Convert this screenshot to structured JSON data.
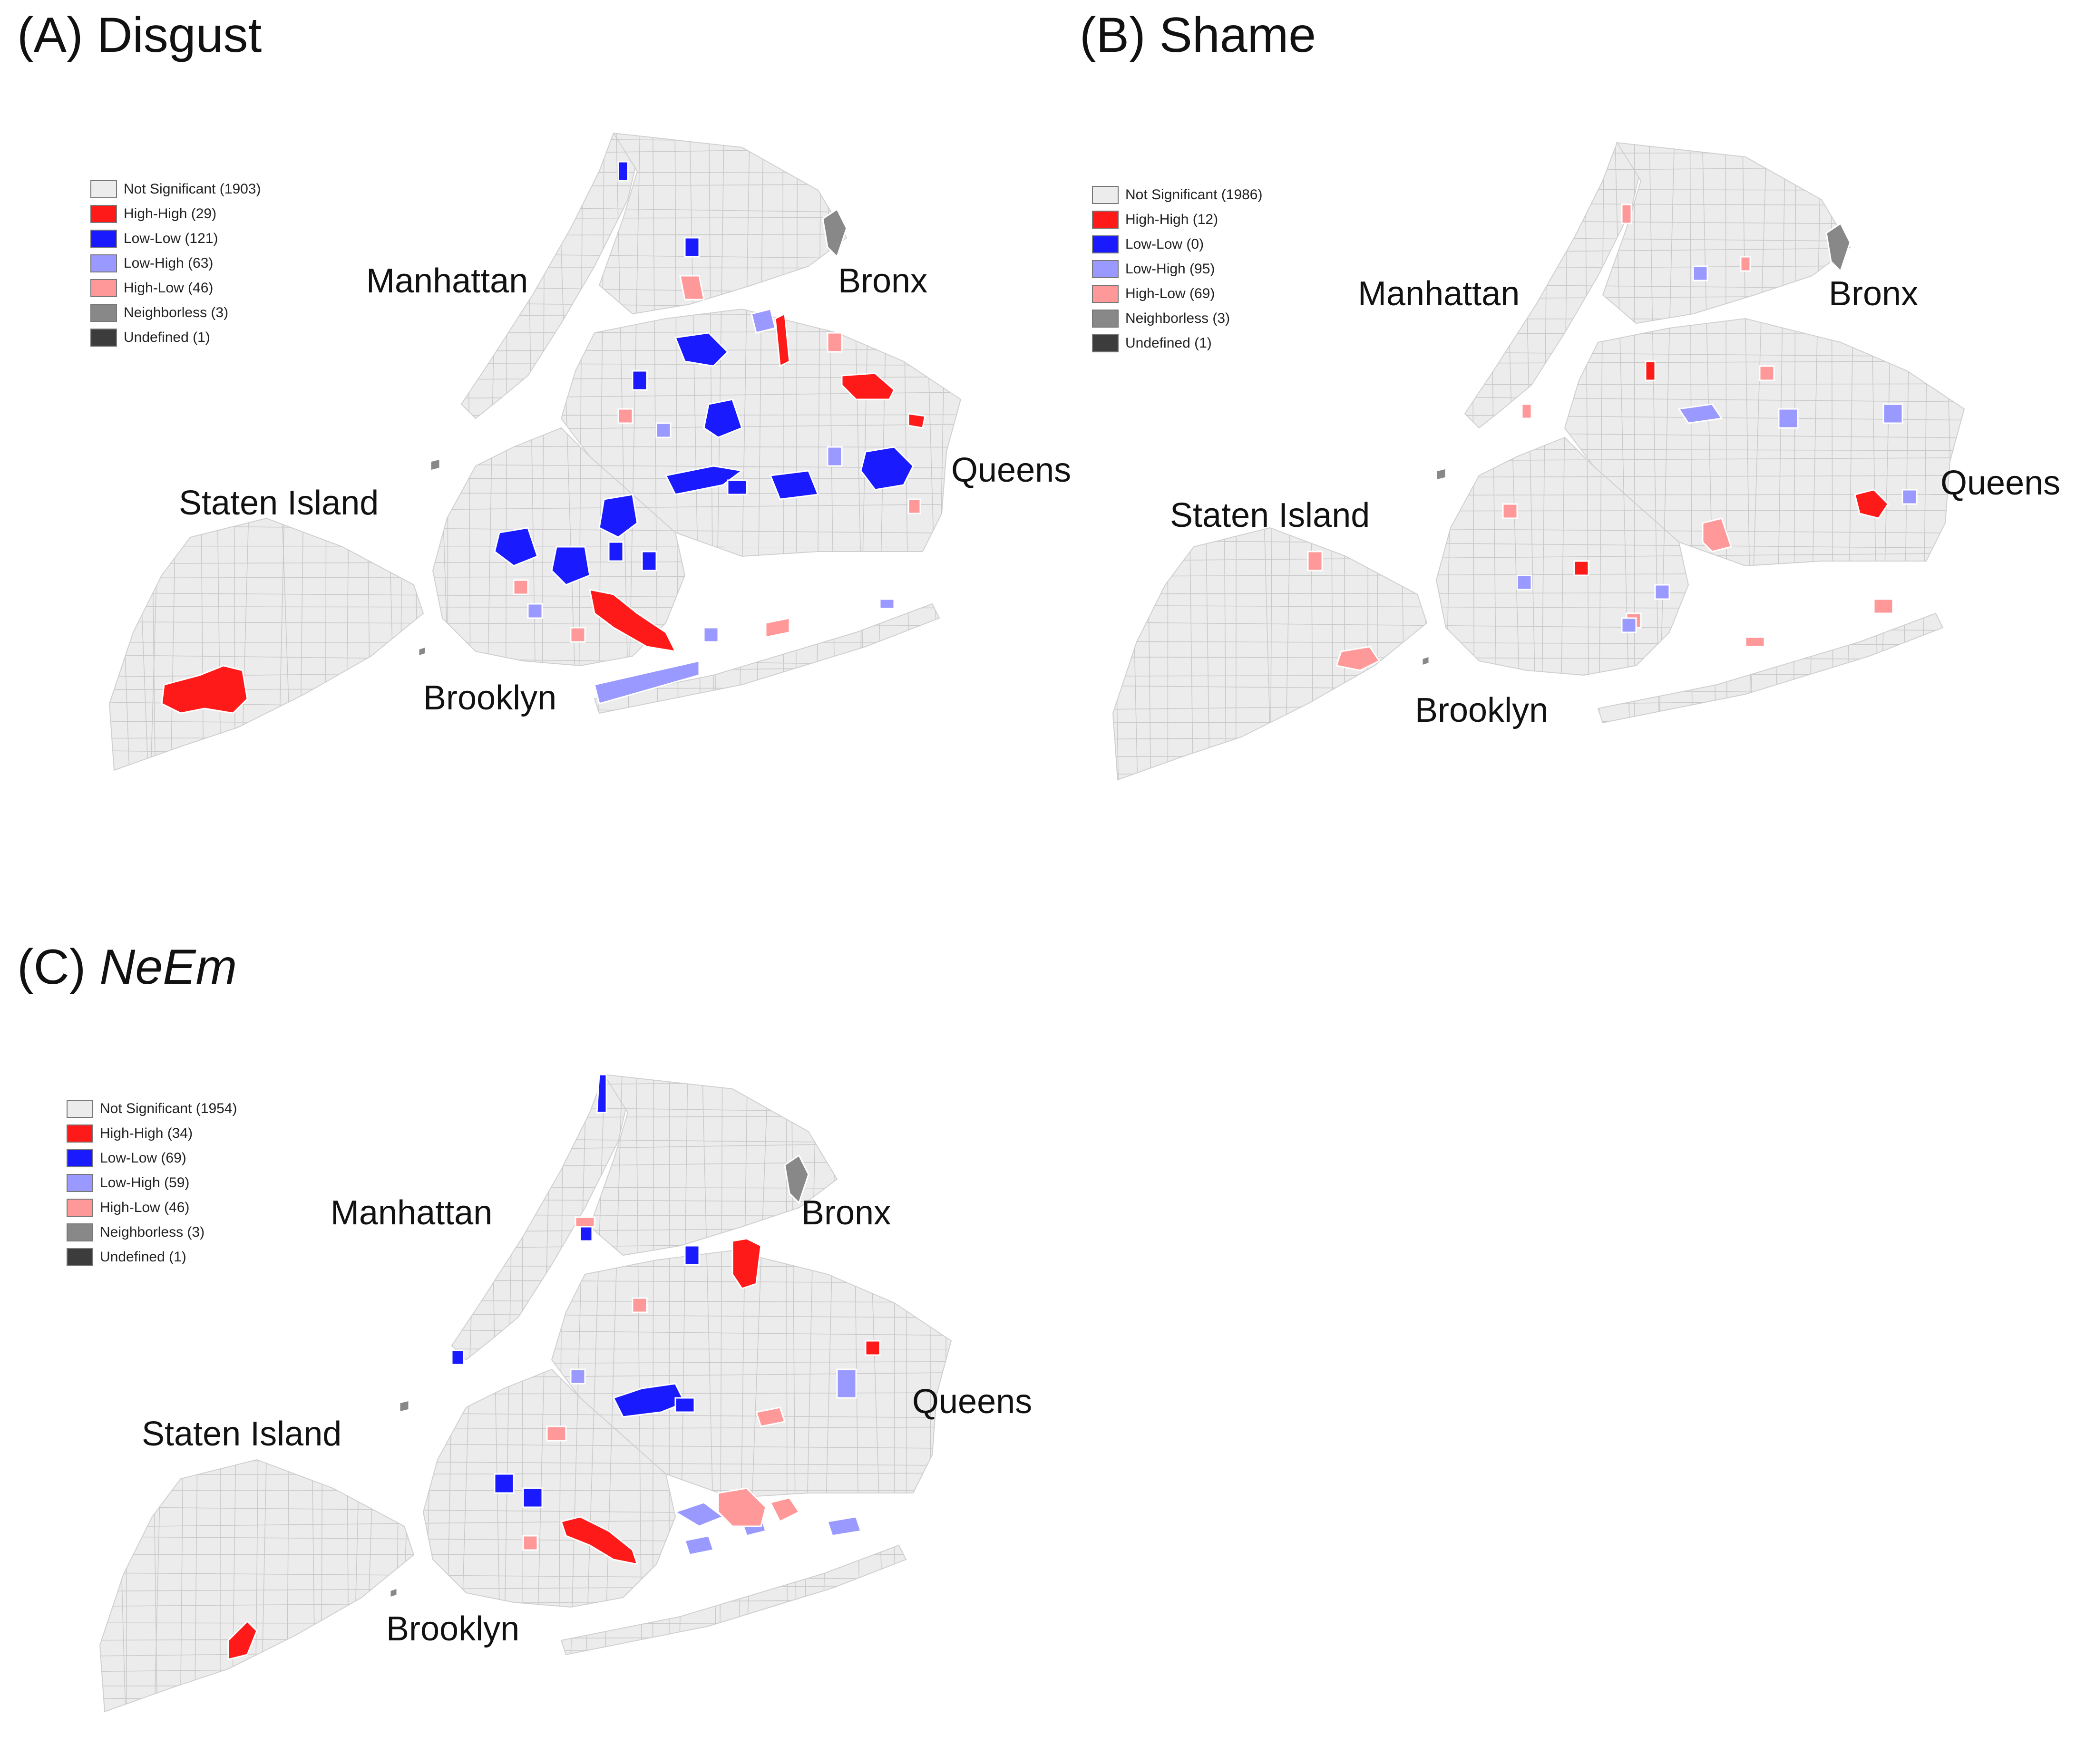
{
  "colors": {
    "not_significant": "#ececec",
    "high_high": "#ff1a1a",
    "low_low": "#1a1aff",
    "low_high": "#9999ff",
    "high_low": "#ff9999",
    "neighborless": "#888888",
    "undefined": "#3c3c3c",
    "tract_line": "#ffffff"
  },
  "boroughs": {
    "manhattan": "Manhattan",
    "bronx": "Bronx",
    "queens": "Queens",
    "staten_island": "Staten Island",
    "brooklyn": "Brooklyn"
  },
  "panels": [
    {
      "id": "A",
      "title_prefix": "(A) ",
      "title_main": "Disgust",
      "legend": [
        {
          "key": "not_significant",
          "label": "Not Significant (1903)"
        },
        {
          "key": "high_high",
          "label": "High-High (29)"
        },
        {
          "key": "low_low",
          "label": "Low-Low (121)"
        },
        {
          "key": "low_high",
          "label": "Low-High (63)"
        },
        {
          "key": "high_low",
          "label": "High-Low (46)"
        },
        {
          "key": "neighborless",
          "label": "Neighborless (3)"
        },
        {
          "key": "undefined",
          "label": "Undefined (1)"
        }
      ]
    },
    {
      "id": "B",
      "title_prefix": "(B) ",
      "title_main": "Shame",
      "legend": [
        {
          "key": "not_significant",
          "label": "Not Significant (1986)"
        },
        {
          "key": "high_high",
          "label": "High-High (12)"
        },
        {
          "key": "low_low",
          "label": "Low-Low (0)"
        },
        {
          "key": "low_high",
          "label": "Low-High (95)"
        },
        {
          "key": "high_low",
          "label": "High-Low (69)"
        },
        {
          "key": "neighborless",
          "label": "Neighborless (3)"
        },
        {
          "key": "undefined",
          "label": "Undefined (1)"
        }
      ]
    },
    {
      "id": "C",
      "title_prefix": "(C) ",
      "title_main": "NeEm",
      "legend": [
        {
          "key": "not_significant",
          "label": "Not Significant (1954)"
        },
        {
          "key": "high_high",
          "label": "High-High (34)"
        },
        {
          "key": "low_low",
          "label": "Low-Low (69)"
        },
        {
          "key": "low_high",
          "label": "Low-High (59)"
        },
        {
          "key": "high_low",
          "label": "High-Low (46)"
        },
        {
          "key": "neighborless",
          "label": "Neighborless (3)"
        },
        {
          "key": "undefined",
          "label": "Undefined (1)"
        }
      ]
    }
  ]
}
